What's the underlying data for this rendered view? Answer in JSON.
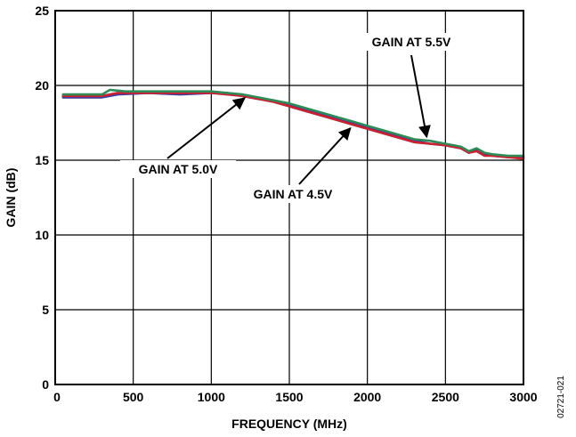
{
  "chart_data": {
    "type": "line",
    "xlabel": "FREQUENCY (MHz)",
    "ylabel": "GAIN (dB)",
    "xlim": [
      0,
      3000
    ],
    "ylim": [
      0,
      25
    ],
    "x_ticks": [
      0,
      500,
      1000,
      1500,
      2000,
      2500,
      3000
    ],
    "y_ticks": [
      0,
      5,
      10,
      15,
      20,
      25
    ],
    "grid": true,
    "figure_id": "02721-021",
    "series": [
      {
        "color": "#3a3aa0",
        "x": [
          50,
          300,
          400,
          600,
          800,
          1000,
          1100,
          1200,
          1300,
          1400,
          1500,
          1600,
          1700,
          1800,
          1900,
          2000,
          2100,
          2200,
          2300,
          2400,
          2500,
          2600,
          2650,
          2700,
          2750,
          2800,
          2900,
          3000
        ],
        "y": [
          19.2,
          19.2,
          19.4,
          19.5,
          19.4,
          19.5,
          19.5,
          19.3,
          19.1,
          19.0,
          18.7,
          18.4,
          18.1,
          17.8,
          17.5,
          17.2,
          16.9,
          16.6,
          16.3,
          16.1,
          16.0,
          15.8,
          15.5,
          15.7,
          15.4,
          15.3,
          15.2,
          15.2
        ]
      },
      {
        "color": "#cc2030",
        "x": [
          50,
          300,
          400,
          600,
          800,
          1000,
          1100,
          1200,
          1300,
          1400,
          1500,
          1600,
          1700,
          1800,
          1900,
          2000,
          2100,
          2200,
          2300,
          2400,
          2500,
          2600,
          2650,
          2700,
          2750,
          2800,
          2900,
          3000
        ],
        "y": [
          19.3,
          19.3,
          19.5,
          19.5,
          19.5,
          19.5,
          19.4,
          19.3,
          19.1,
          18.9,
          18.6,
          18.3,
          18.0,
          17.7,
          17.4,
          17.1,
          16.8,
          16.5,
          16.2,
          16.1,
          16.0,
          15.8,
          15.5,
          15.6,
          15.3,
          15.3,
          15.2,
          15.1
        ]
      },
      {
        "color": "#2e8b57",
        "x": [
          50,
          300,
          350,
          450,
          600,
          800,
          1000,
          1100,
          1200,
          1300,
          1400,
          1500,
          1600,
          1700,
          1800,
          1900,
          2000,
          2100,
          2200,
          2300,
          2400,
          2500,
          2600,
          2650,
          2700,
          2750,
          2800,
          2900,
          3000
        ],
        "y": [
          19.4,
          19.4,
          19.7,
          19.6,
          19.6,
          19.6,
          19.6,
          19.5,
          19.4,
          19.2,
          19.0,
          18.8,
          18.5,
          18.2,
          17.9,
          17.6,
          17.3,
          17.0,
          16.7,
          16.4,
          16.3,
          16.1,
          15.9,
          15.6,
          15.8,
          15.5,
          15.4,
          15.3,
          15.3
        ]
      }
    ],
    "annotations": [
      {
        "text": "GAIN AT 5.5V",
        "point": [
          2380,
          16.2
        ]
      },
      {
        "text": "GAIN AT 5.0V",
        "point": [
          1180,
          19.4
        ]
      },
      {
        "text": "GAIN AT 4.5V",
        "point": [
          1880,
          17.5
        ]
      }
    ]
  }
}
